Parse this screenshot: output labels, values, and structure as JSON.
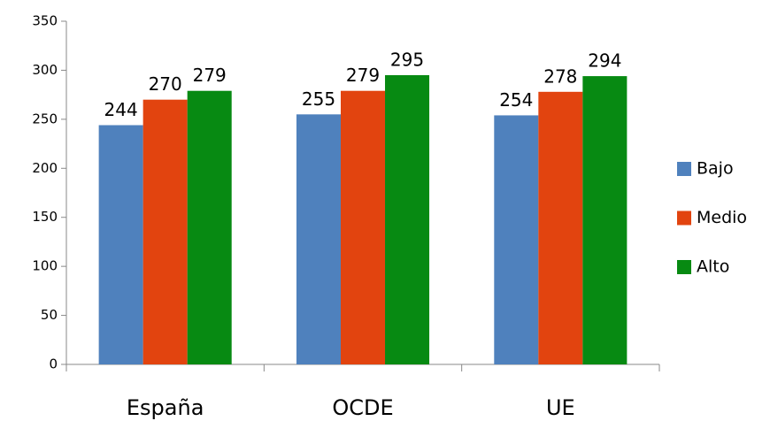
{
  "chart_data": {
    "type": "bar",
    "categories": [
      "España",
      "OCDE",
      "UE"
    ],
    "series": [
      {
        "name": "Bajo",
        "color": "#4f81bd",
        "values": [
          244,
          255,
          254
        ]
      },
      {
        "name": "Medio",
        "color": "#e2440f",
        "values": [
          270,
          279,
          278
        ]
      },
      {
        "name": "Alto",
        "color": "#078a12",
        "values": [
          279,
          295,
          294
        ]
      }
    ],
    "ylim": [
      0,
      350
    ],
    "yticks": [
      0,
      50,
      100,
      150,
      200,
      250,
      300,
      350
    ],
    "grid": false,
    "legend": "right"
  }
}
